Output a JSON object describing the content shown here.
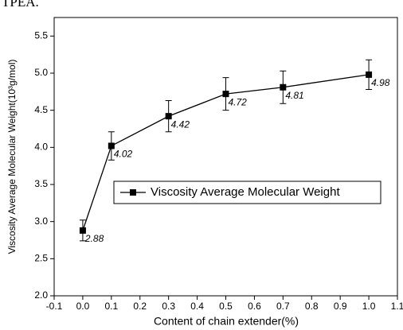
{
  "page_text": "TPEA.",
  "chart_data": {
    "type": "line",
    "x_label": "Content of chain extender(%)",
    "y_label": "Viscosity Average Molecular Weight(10³g/mol)",
    "x": [
      0,
      0.1,
      0.3,
      0.5,
      0.7,
      1.0
    ],
    "series": [
      {
        "name": "Viscosity Average Molecular Weight",
        "color": "#000000",
        "values": [
          2.88,
          4.02,
          4.42,
          4.72,
          4.81,
          4.98
        ],
        "errors": [
          0.14,
          0.19,
          0.21,
          0.22,
          0.22,
          0.2
        ]
      }
    ],
    "xlim": [
      -0.1,
      1.1
    ],
    "xticks": [
      -0.1,
      {
        "value": 0,
        "label": "0.0"
      },
      0.1,
      0.2,
      0.3,
      0.4,
      0.5,
      0.6,
      0.7,
      0.8,
      0.9,
      {
        "value": 1,
        "label": "1.0"
      },
      1.1
    ],
    "ylim": [
      2.0,
      5.75
    ],
    "yticks": [
      {
        "value": 2,
        "label": "2.0"
      },
      2.5,
      {
        "value": 3,
        "label": "3.0"
      },
      3.5,
      {
        "value": 4,
        "label": "4.0"
      },
      4.5,
      {
        "value": 5,
        "label": "5.0"
      },
      5.5
    ],
    "legend": "center",
    "grid": false
  }
}
